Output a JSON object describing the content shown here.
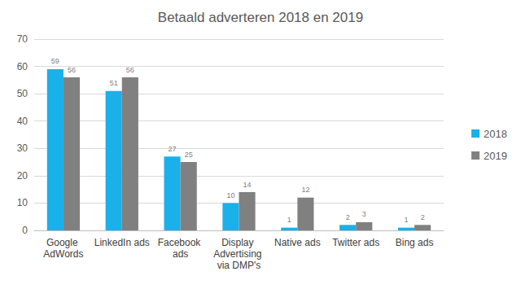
{
  "chart_data": {
    "type": "bar",
    "title": "Betaald adverteren 2018 en 2019",
    "categories": [
      "Google AdWords",
      "LinkedIn ads",
      "Facebook ads",
      "Display Advertising via DMP's",
      "Native ads",
      "Twitter ads",
      "Bing ads"
    ],
    "series": [
      {
        "name": "2018",
        "color": "#1ab0ea",
        "values": [
          59,
          51,
          27,
          10,
          1,
          2,
          1
        ]
      },
      {
        "name": "2019",
        "color": "#808080",
        "values": [
          56,
          56,
          25,
          14,
          12,
          3,
          2
        ]
      }
    ],
    "ylim": [
      0,
      70
    ],
    "yticks": [
      0,
      10,
      20,
      30,
      40,
      50,
      60,
      70
    ],
    "grid": true,
    "legend": "right",
    "data_labels": true
  }
}
